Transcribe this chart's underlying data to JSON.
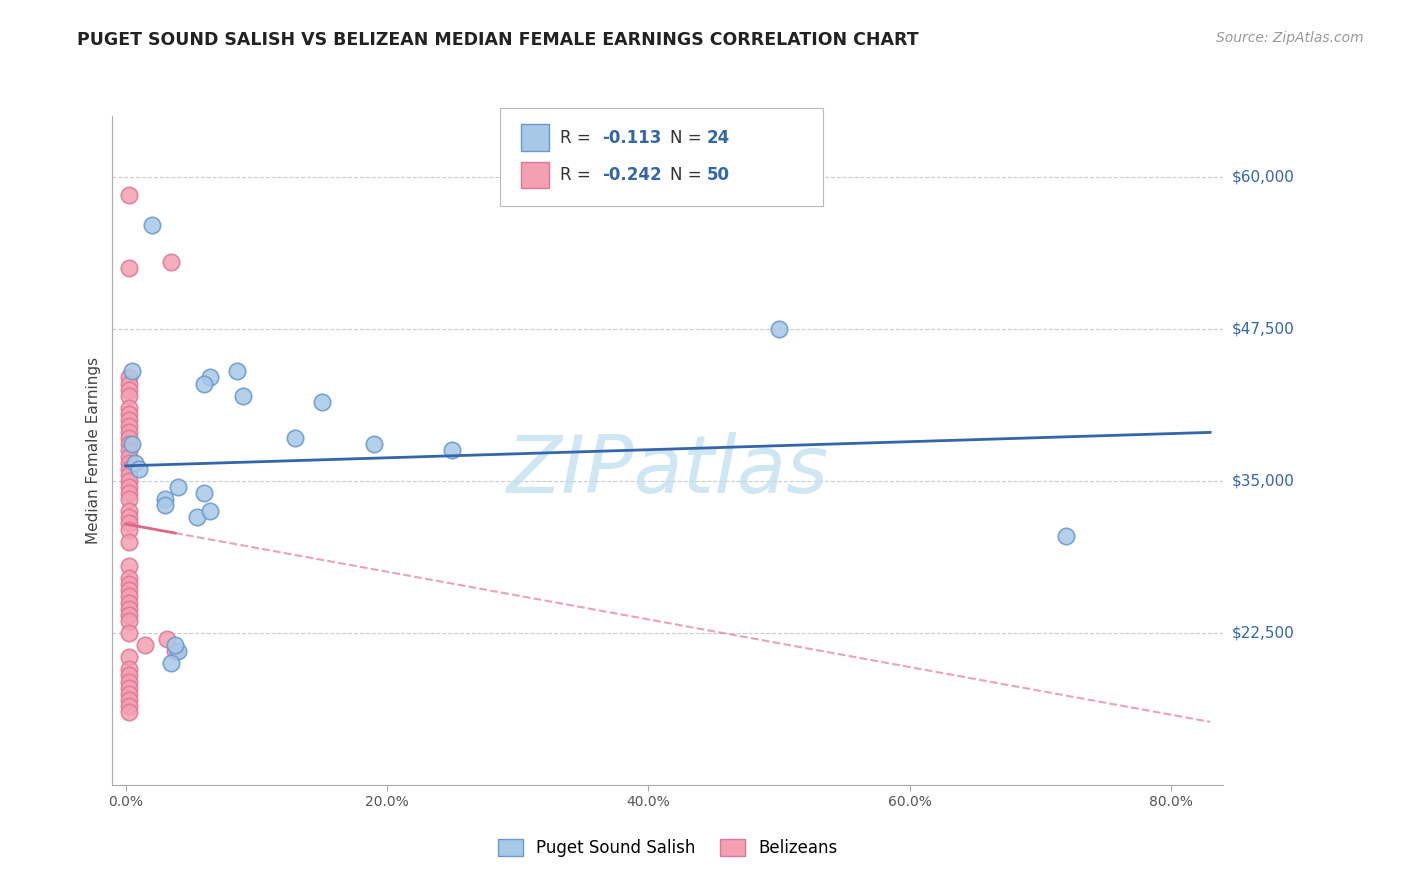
{
  "title": "PUGET SOUND SALISH VS BELIZEAN MEDIAN FEMALE EARNINGS CORRELATION CHART",
  "source": "Source: ZipAtlas.com",
  "ylabel": "Median Female Earnings",
  "xlabel_ticks": [
    "0.0%",
    "20.0%",
    "40.0%",
    "60.0%",
    "80.0%"
  ],
  "xlabel_vals": [
    0.0,
    0.2,
    0.4,
    0.6,
    0.8
  ],
  "ytick_labels": [
    "$22,500",
    "$35,000",
    "$47,500",
    "$60,000"
  ],
  "ytick_vals": [
    22500,
    35000,
    47500,
    60000
  ],
  "ylim": [
    10000,
    65000
  ],
  "xlim": [
    -0.01,
    0.84
  ],
  "legend_labels": [
    "Puget Sound Salish",
    "Belizeans"
  ],
  "legend_r_n": [
    {
      "r": "-0.113",
      "n": "24"
    },
    {
      "r": "-0.242",
      "n": "50"
    }
  ],
  "blue_color": "#A8C8E8",
  "pink_color": "#F4A0B0",
  "blue_edge_color": "#6699CC",
  "pink_edge_color": "#DD7799",
  "blue_line_color": "#3366AA",
  "pink_line_color": "#DD6688",
  "watermark": "ZIPatlas",
  "watermark_color": "#BBDDEE",
  "blue_scatter_x": [
    0.02,
    0.005,
    0.065,
    0.085,
    0.06,
    0.09,
    0.005,
    0.007,
    0.01,
    0.13,
    0.15,
    0.19,
    0.25,
    0.03,
    0.055,
    0.065,
    0.06,
    0.04,
    0.03,
    0.04,
    0.5,
    0.72,
    0.035,
    0.038
  ],
  "blue_scatter_y": [
    56000,
    44000,
    43500,
    44000,
    43000,
    42000,
    38000,
    36500,
    36000,
    38500,
    41500,
    38000,
    37500,
    33500,
    32000,
    32500,
    34000,
    34500,
    33000,
    21000,
    47500,
    30500,
    20000,
    21500
  ],
  "pink_scatter_x": [
    0.003,
    0.035,
    0.003,
    0.003,
    0.003,
    0.003,
    0.003,
    0.003,
    0.003,
    0.003,
    0.003,
    0.003,
    0.003,
    0.003,
    0.003,
    0.003,
    0.003,
    0.003,
    0.003,
    0.003,
    0.003,
    0.003,
    0.003,
    0.003,
    0.003,
    0.003,
    0.003,
    0.003,
    0.003,
    0.003,
    0.003,
    0.003,
    0.003,
    0.003,
    0.003,
    0.003,
    0.003,
    0.003,
    0.015,
    0.003,
    0.003,
    0.003,
    0.003,
    0.003,
    0.003,
    0.003,
    0.003,
    0.003,
    0.038,
    0.032
  ],
  "pink_scatter_y": [
    58500,
    53000,
    52500,
    43500,
    43000,
    42500,
    42000,
    41000,
    40500,
    40000,
    39500,
    39000,
    38500,
    38000,
    37500,
    37000,
    36500,
    36000,
    35500,
    35000,
    34500,
    34000,
    33500,
    32500,
    32000,
    31500,
    31000,
    30000,
    28000,
    27000,
    26500,
    26000,
    25500,
    25000,
    24500,
    24000,
    23500,
    22500,
    21500,
    20500,
    19500,
    19000,
    18500,
    18000,
    17500,
    17000,
    16500,
    16000,
    21000,
    22000
  ],
  "grid_color": "#CCCCCC",
  "bg_color": "#FFFFFF"
}
